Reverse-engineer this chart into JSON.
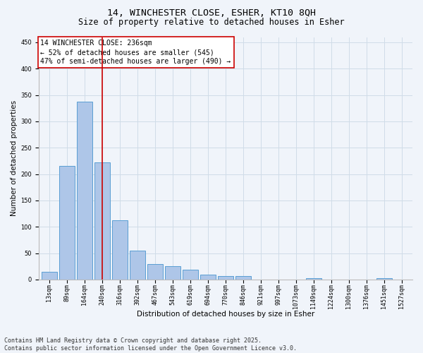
{
  "title_line1": "14, WINCHESTER CLOSE, ESHER, KT10 8QH",
  "title_line2": "Size of property relative to detached houses in Esher",
  "xlabel": "Distribution of detached houses by size in Esher",
  "ylabel": "Number of detached properties",
  "categories": [
    "13sqm",
    "89sqm",
    "164sqm",
    "240sqm",
    "316sqm",
    "392sqm",
    "467sqm",
    "543sqm",
    "619sqm",
    "694sqm",
    "770sqm",
    "846sqm",
    "921sqm",
    "997sqm",
    "1073sqm",
    "1149sqm",
    "1224sqm",
    "1300sqm",
    "1376sqm",
    "1451sqm",
    "1527sqm"
  ],
  "values": [
    15,
    215,
    338,
    222,
    113,
    55,
    29,
    26,
    19,
    9,
    6,
    6,
    0,
    0,
    0,
    2,
    0,
    0,
    0,
    2,
    0
  ],
  "bar_color": "#aec6e8",
  "bar_edge_color": "#5a9fd4",
  "grid_color": "#d0dce8",
  "background_color": "#f0f4fa",
  "vline_color": "#cc0000",
  "vline_x": 3.0,
  "annotation_text": "14 WINCHESTER CLOSE: 236sqm\n← 52% of detached houses are smaller (545)\n47% of semi-detached houses are larger (490) →",
  "annotation_box_color": "#cc0000",
  "ylim": [
    0,
    460
  ],
  "yticks": [
    0,
    50,
    100,
    150,
    200,
    250,
    300,
    350,
    400,
    450
  ],
  "footer": "Contains HM Land Registry data © Crown copyright and database right 2025.\nContains public sector information licensed under the Open Government Licence v3.0.",
  "title_fontsize": 9.5,
  "subtitle_fontsize": 8.5,
  "axis_label_fontsize": 7.5,
  "tick_fontsize": 6,
  "annotation_fontsize": 7,
  "footer_fontsize": 6
}
